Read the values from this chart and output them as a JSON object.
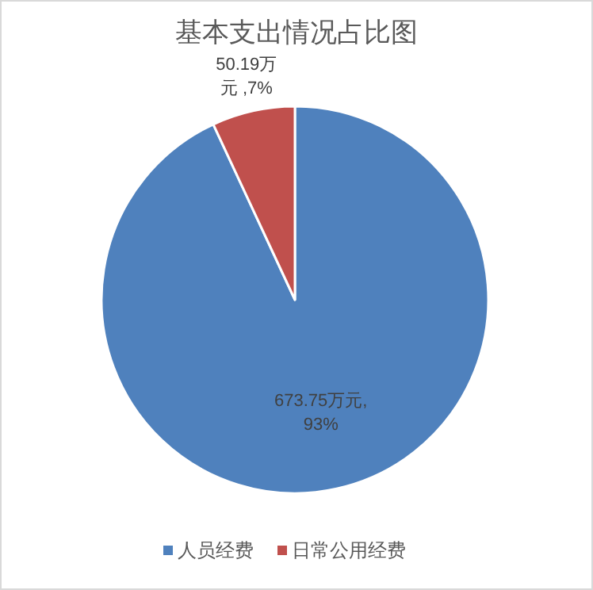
{
  "chart_data": {
    "type": "pie",
    "title": "基本支出情况占比图",
    "categories": [
      "人员经费",
      "日常公用经费"
    ],
    "values": [
      673.75,
      50.19
    ],
    "colors": [
      "#4f81bd",
      "#c0504d"
    ],
    "value_labels": [
      "673.75万元,93%",
      "50.19万元 ,7%"
    ],
    "legend": "bottom"
  }
}
